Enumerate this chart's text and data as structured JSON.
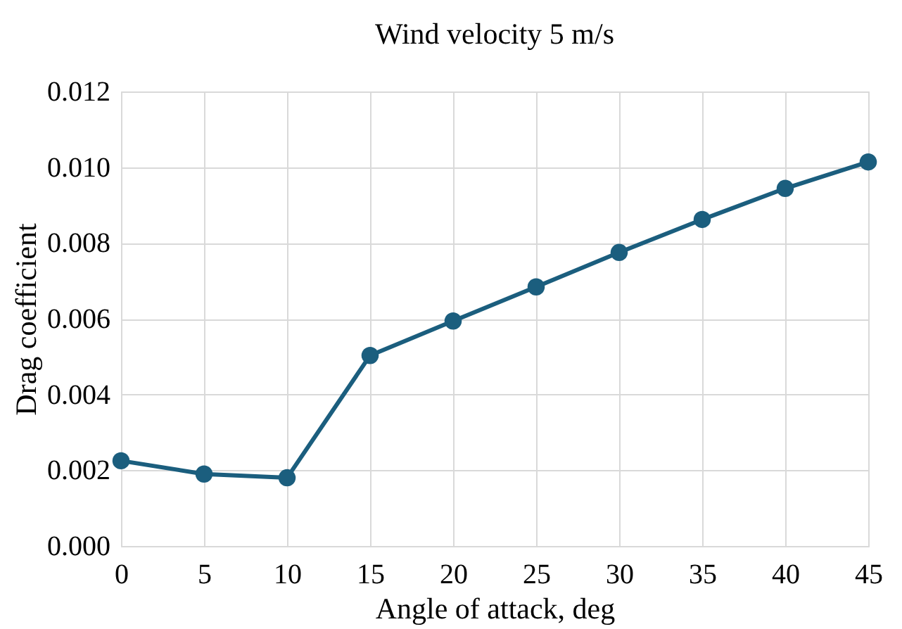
{
  "chart_data": {
    "type": "line",
    "title": "Wind velocity 5 m/s",
    "xlabel": "Angle of attack, deg",
    "ylabel": "Drag coefficient",
    "x": [
      0,
      5,
      10,
      15,
      20,
      25,
      30,
      35,
      40,
      45
    ],
    "series": [
      {
        "color": "#1b5e7e",
        "values": [
          0.00225,
          0.0019,
          0.0018,
          0.00503,
          0.00594,
          0.00684,
          0.00775,
          0.00862,
          0.00944,
          0.01014
        ]
      }
    ],
    "xlim": [
      0,
      45
    ],
    "xticks": [
      0,
      5,
      10,
      15,
      20,
      25,
      30,
      35,
      40,
      45
    ],
    "ylim": [
      0,
      0.012
    ],
    "yticks": [
      {
        "value": 0,
        "label": "0.000"
      },
      {
        "value": 0.002,
        "label": "0.002"
      },
      {
        "value": 0.004,
        "label": "0.004"
      },
      {
        "value": 0.006,
        "label": "0.006"
      },
      {
        "value": 0.008,
        "label": "0.008"
      },
      {
        "value": 0.01,
        "label": "0.010"
      },
      {
        "value": 0.012,
        "label": "0.012"
      }
    ],
    "grid": true,
    "marker": "circle",
    "line_style": "solid"
  }
}
